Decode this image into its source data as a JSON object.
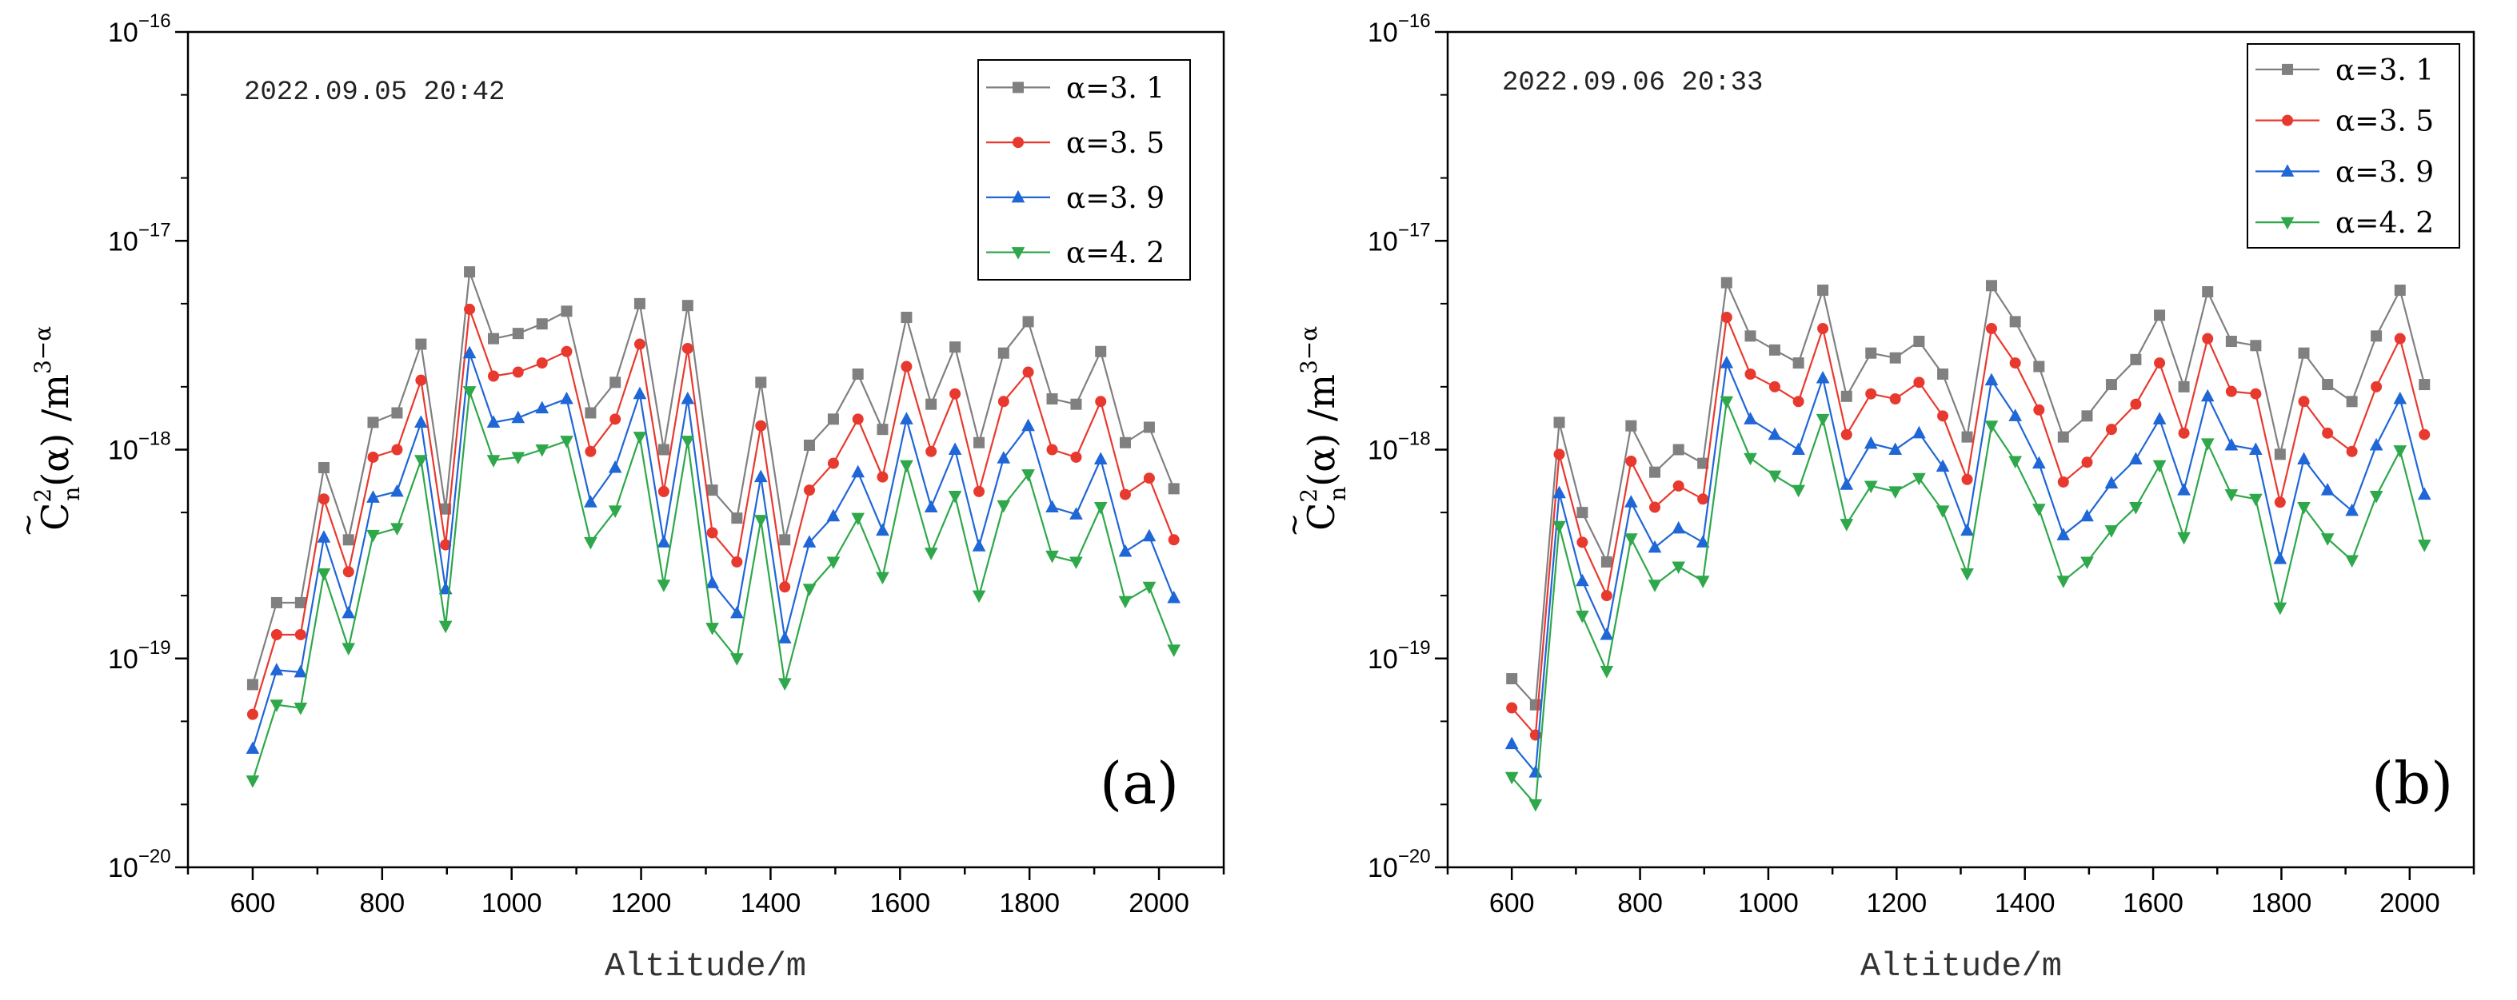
{
  "chart_data": [
    {
      "panel": "(a)",
      "type": "line",
      "yscale": "log",
      "timestamp": "2022.09.05 20:42",
      "xlabel": "Altitude/m",
      "ylabel": {
        "base": "C",
        "sup": "2",
        "sub": "n",
        "mid": "(α) /m",
        "unit_sup": "3−α"
      },
      "xlim": [
        500,
        2100
      ],
      "ylim": [
        1e-20,
        1e-16
      ],
      "x_ticks": [
        "600",
        "800",
        "1000",
        "1200",
        "1400",
        "1600",
        "1800",
        "2000"
      ],
      "y_ticks": [
        {
          "exp": "−20",
          "value": 1e-20
        },
        {
          "exp": "−19",
          "value": 1e-19
        },
        {
          "exp": "−18",
          "value": 1e-18
        },
        {
          "exp": "−17",
          "value": 1e-17
        },
        {
          "exp": "−16",
          "value": 1e-16
        }
      ],
      "y_tick_base": "10",
      "legend_position": "top-right",
      "x": [
        600,
        637,
        674,
        710,
        748,
        786,
        823,
        860,
        898,
        935,
        972,
        1010,
        1047,
        1085,
        1122,
        1160,
        1198,
        1235,
        1272,
        1310,
        1348,
        1385,
        1422,
        1460,
        1497,
        1535,
        1573,
        1610,
        1648,
        1685,
        1722,
        1760,
        1798,
        1835,
        1872,
        1910,
        1948,
        1985,
        2023
      ],
      "series": [
        {
          "name": "α=3. 1",
          "color": "#808080",
          "marker": "square",
          "values": [
            7.5e-20,
            1.85e-19,
            1.85e-19,
            8.2e-19,
            3.7e-19,
            1.35e-18,
            1.5e-18,
            3.2e-18,
            5.2e-19,
            7.1e-18,
            3.4e-18,
            3.6e-18,
            4e-18,
            4.6e-18,
            1.5e-18,
            2.1e-18,
            5e-18,
            1e-18,
            4.9e-18,
            6.4e-19,
            4.7e-19,
            2.1e-18,
            3.7e-19,
            1.05e-18,
            1.4e-18,
            2.3e-18,
            1.25e-18,
            4.3e-18,
            1.65e-18,
            3.1e-18,
            1.08e-18,
            2.9e-18,
            4.1e-18,
            1.75e-18,
            1.65e-18,
            2.95e-18,
            1.08e-18,
            1.28e-18,
            6.5e-19
          ]
        },
        {
          "name": "α=3. 5",
          "color": "#e8392f",
          "marker": "circle",
          "values": [
            5.4e-20,
            1.3e-19,
            1.3e-19,
            5.8e-19,
            2.6e-19,
            9.2e-19,
            1e-18,
            2.15e-18,
            3.5e-19,
            4.7e-18,
            2.25e-18,
            2.35e-18,
            2.6e-18,
            2.95e-18,
            9.8e-19,
            1.4e-18,
            3.2e-18,
            6.3e-19,
            3.05e-18,
            4e-19,
            2.9e-19,
            1.3e-18,
            2.2e-19,
            6.4e-19,
            8.6e-19,
            1.4e-18,
            7.4e-19,
            2.5e-18,
            9.8e-19,
            1.85e-18,
            6.3e-19,
            1.7e-18,
            2.35e-18,
            1e-18,
            9.2e-19,
            1.7e-18,
            6.1e-19,
            7.3e-19,
            3.7e-19
          ]
        },
        {
          "name": "α=3. 9",
          "color": "#1f66d6",
          "marker": "triangle-up",
          "values": [
            3.7e-20,
            8.8e-20,
            8.6e-20,
            3.8e-19,
            1.65e-19,
            5.9e-19,
            6.3e-19,
            1.35e-18,
            2.15e-19,
            2.9e-18,
            1.35e-18,
            1.42e-18,
            1.58e-18,
            1.75e-18,
            5.6e-19,
            8.2e-19,
            1.85e-18,
            3.6e-19,
            1.75e-18,
            2.3e-19,
            1.65e-19,
            7.4e-19,
            1.25e-19,
            3.6e-19,
            4.8e-19,
            7.8e-19,
            4.1e-19,
            1.4e-18,
            5.3e-19,
            1e-18,
            3.45e-19,
            9.1e-19,
            1.3e-18,
            5.3e-19,
            4.9e-19,
            9e-19,
            3.25e-19,
            3.85e-19,
            1.95e-19
          ]
        },
        {
          "name": "α=4. 2",
          "color": "#2ea84a",
          "marker": "triangle-down",
          "values": [
            2.6e-20,
            6e-20,
            5.8e-20,
            2.55e-19,
            1.12e-19,
            3.9e-19,
            4.2e-19,
            8.9e-19,
            1.43e-19,
            1.9e-18,
            8.9e-19,
            9.2e-19,
            1e-18,
            1.1e-18,
            3.6e-19,
            5.1e-19,
            1.15e-18,
            2.25e-19,
            1.1e-18,
            1.4e-19,
            1e-19,
            4.6e-19,
            7.6e-20,
            2.15e-19,
            2.9e-19,
            4.7e-19,
            2.45e-19,
            8.4e-19,
            3.2e-19,
            6e-19,
            2e-19,
            5.4e-19,
            7.6e-19,
            3.1e-19,
            2.9e-19,
            5.3e-19,
            1.88e-19,
            2.2e-19,
            1.1e-19
          ]
        }
      ]
    },
    {
      "panel": "(b)",
      "type": "line",
      "yscale": "log",
      "timestamp": "2022.09.06 20:33",
      "xlabel": "Altitude/m",
      "ylabel": {
        "base": "C",
        "sup": "2",
        "sub": "n",
        "mid": "(α) /m",
        "unit_sup": "3−α"
      },
      "xlim": [
        500,
        2100
      ],
      "ylim": [
        1e-20,
        1e-16
      ],
      "x_ticks": [
        "600",
        "800",
        "1000",
        "1200",
        "1400",
        "1600",
        "1800",
        "2000"
      ],
      "y_ticks": [
        {
          "exp": "−20",
          "value": 1e-20
        },
        {
          "exp": "−19",
          "value": 1e-19
        },
        {
          "exp": "−18",
          "value": 1e-18
        },
        {
          "exp": "−17",
          "value": 1e-17
        },
        {
          "exp": "−16",
          "value": 1e-16
        }
      ],
      "y_tick_base": "10",
      "legend_position": "top-right",
      "x": [
        600,
        637,
        674,
        710,
        748,
        786,
        823,
        860,
        898,
        935,
        972,
        1010,
        1047,
        1085,
        1122,
        1160,
        1198,
        1235,
        1272,
        1310,
        1348,
        1385,
        1422,
        1460,
        1497,
        1535,
        1573,
        1610,
        1648,
        1685,
        1722,
        1760,
        1798,
        1835,
        1872,
        1910,
        1948,
        1985,
        2023
      ],
      "series": [
        {
          "name": "α=3. 1",
          "color": "#808080",
          "marker": "square",
          "values": [
            8e-20,
            6e-20,
            1.35e-18,
            5e-19,
            2.9e-19,
            1.3e-18,
            7.8e-19,
            1e-18,
            8.6e-19,
            6.3e-18,
            3.5e-18,
            3e-18,
            2.6e-18,
            5.8e-18,
            1.8e-18,
            2.9e-18,
            2.75e-18,
            3.3e-18,
            2.3e-18,
            1.15e-18,
            6.1e-18,
            4.1e-18,
            2.5e-18,
            1.15e-18,
            1.45e-18,
            2.05e-18,
            2.7e-18,
            4.4e-18,
            2e-18,
            5.7e-18,
            3.3e-18,
            3.15e-18,
            9.5e-19,
            2.9e-18,
            2.05e-18,
            1.7e-18,
            3.5e-18,
            5.8e-18,
            2.05e-18
          ]
        },
        {
          "name": "α=3. 5",
          "color": "#e8392f",
          "marker": "circle",
          "values": [
            5.8e-20,
            4.3e-20,
            9.5e-19,
            3.6e-19,
            2e-19,
            8.8e-19,
            5.3e-19,
            6.7e-19,
            5.8e-19,
            4.3e-18,
            2.3e-18,
            2e-18,
            1.7e-18,
            3.8e-18,
            1.18e-18,
            1.85e-18,
            1.75e-18,
            2.1e-18,
            1.45e-18,
            7.2e-19,
            3.8e-18,
            2.6e-18,
            1.55e-18,
            7e-19,
            8.7e-19,
            1.25e-18,
            1.65e-18,
            2.6e-18,
            1.2e-18,
            3.4e-18,
            1.9e-18,
            1.85e-18,
            5.6e-19,
            1.7e-18,
            1.2e-18,
            9.8e-19,
            2e-18,
            3.4e-18,
            1.18e-18
          ]
        },
        {
          "name": "α=3. 9",
          "color": "#1f66d6",
          "marker": "triangle-up",
          "values": [
            3.9e-20,
            2.85e-20,
            6.2e-19,
            2.35e-19,
            1.3e-19,
            5.6e-19,
            3.4e-19,
            4.2e-19,
            3.6e-19,
            2.6e-18,
            1.4e-18,
            1.18e-18,
            1e-18,
            2.2e-18,
            6.8e-19,
            1.07e-18,
            1e-18,
            1.2e-18,
            8.3e-19,
            4.1e-19,
            2.15e-18,
            1.45e-18,
            8.6e-19,
            3.9e-19,
            4.8e-19,
            6.9e-19,
            9e-19,
            1.4e-18,
            6.4e-19,
            1.8e-18,
            1.05e-18,
            1e-18,
            3e-19,
            9e-19,
            6.4e-19,
            5.1e-19,
            1.05e-18,
            1.75e-18,
            6.1e-19
          ]
        },
        {
          "name": "α=4. 2",
          "color": "#2ea84a",
          "marker": "triangle-down",
          "values": [
            2.7e-20,
            2e-20,
            4.3e-19,
            1.6e-19,
            8.7e-20,
            3.75e-19,
            2.25e-19,
            2.75e-19,
            2.35e-19,
            1.7e-18,
            9.1e-19,
            7.5e-19,
            6.4e-19,
            1.4e-18,
            4.4e-19,
            6.7e-19,
            6.3e-19,
            7.3e-19,
            5.1e-19,
            2.55e-19,
            1.3e-18,
            8.8e-19,
            5.2e-19,
            2.35e-19,
            2.9e-19,
            4.1e-19,
            5.3e-19,
            8.4e-19,
            3.8e-19,
            1.07e-18,
            6.1e-19,
            5.8e-19,
            1.75e-19,
            5.3e-19,
            3.75e-19,
            2.95e-19,
            6e-19,
            9.9e-19,
            3.5e-19
          ]
        }
      ]
    }
  ]
}
